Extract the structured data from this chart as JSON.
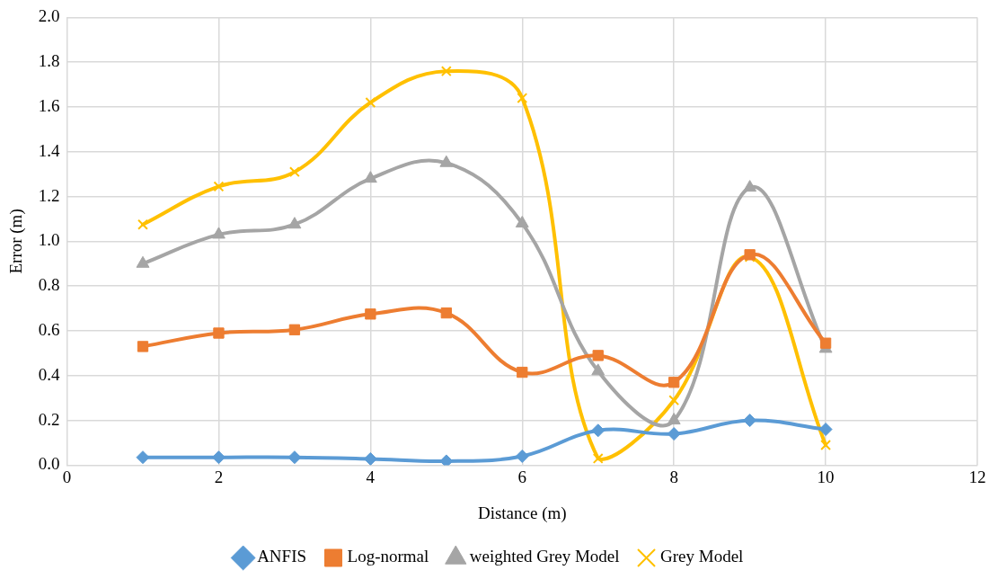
{
  "chart_data": {
    "type": "line",
    "xlabel": "Distance (m)",
    "ylabel": "Error (m)",
    "x": [
      1,
      2,
      3,
      4,
      5,
      6,
      7,
      8,
      9,
      10
    ],
    "series": [
      {
        "name": "ANFIS",
        "color": "#5b9bd5",
        "marker": "diamond",
        "values": [
          0.035,
          0.035,
          0.035,
          0.028,
          0.018,
          0.04,
          0.155,
          0.14,
          0.2,
          0.16
        ]
      },
      {
        "name": "Log-normal",
        "color": "#ed7d31",
        "marker": "square",
        "values": [
          0.53,
          0.59,
          0.605,
          0.675,
          0.68,
          0.415,
          0.49,
          0.37,
          0.94,
          0.545
        ]
      },
      {
        "name": "weighted Grey Model",
        "color": "#a5a5a5",
        "marker": "triangle",
        "values": [
          0.9,
          1.03,
          1.075,
          1.28,
          1.35,
          1.08,
          0.42,
          0.2,
          1.24,
          0.52
        ]
      },
      {
        "name": "Grey Model",
        "color": "#ffc000",
        "marker": "cross",
        "values": [
          1.075,
          1.245,
          1.31,
          1.62,
          1.76,
          1.64,
          0.03,
          0.29,
          0.93,
          0.09
        ]
      }
    ],
    "xlim": [
      0,
      12
    ],
    "xticks": [
      0,
      2,
      4,
      6,
      8,
      10,
      12
    ],
    "ylim": [
      0,
      2
    ],
    "yticks": [
      {
        "value": 0,
        "label": "0.0"
      },
      {
        "value": 0.2,
        "label": "0.2"
      },
      {
        "value": 0.4,
        "label": "0.4"
      },
      {
        "value": 0.6,
        "label": "0.6"
      },
      {
        "value": 0.8,
        "label": "0.8"
      },
      {
        "value": 1,
        "label": "1.0"
      },
      {
        "value": 1.2,
        "label": "1.2"
      },
      {
        "value": 1.4,
        "label": "1.4"
      },
      {
        "value": 1.6,
        "label": "1.6"
      },
      {
        "value": 1.8,
        "label": "1.8"
      },
      {
        "value": 2,
        "label": "2.0"
      }
    ],
    "grid": true,
    "legend": "bottom",
    "line_style": "solid"
  }
}
